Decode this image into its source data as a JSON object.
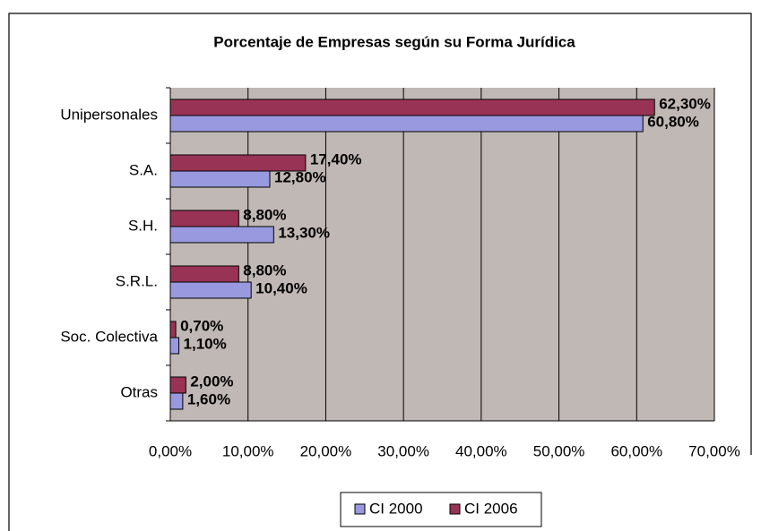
{
  "chart_data": {
    "type": "hbar",
    "title": "Porcentaje de Empresas según su Forma Jurídica",
    "categories": [
      "Unipersonales",
      "S.A.",
      "S.H.",
      "S.R.L.",
      "Soc. Colectiva",
      "Otras"
    ],
    "series": [
      {
        "name": "CI 2000",
        "color": "#9999e0",
        "values": [
          60.8,
          12.8,
          13.3,
          10.4,
          1.1,
          1.6
        ],
        "value_labels": [
          "60,80%",
          "12,80%",
          "13,30%",
          "10,40%",
          "1,10%",
          "1,60%"
        ]
      },
      {
        "name": "CI 2006",
        "color": "#993355",
        "values": [
          62.3,
          17.4,
          8.8,
          8.8,
          0.7,
          2.0
        ],
        "value_labels": [
          "62,30%",
          "17,40%",
          "8,80%",
          "8,80%",
          "0,70%",
          "2,00%"
        ]
      }
    ],
    "xlim": [
      0,
      70
    ],
    "xticks": [
      {
        "value": 0,
        "label": "0,00%"
      },
      {
        "value": 10,
        "label": "10,00%"
      },
      {
        "value": 20,
        "label": "20,00%"
      },
      {
        "value": 30,
        "label": "30,00%"
      },
      {
        "value": 40,
        "label": "40,00%"
      },
      {
        "value": 50,
        "label": "50,00%"
      },
      {
        "value": 60,
        "label": "60,00%"
      },
      {
        "value": 70,
        "label": "70,00%"
      }
    ],
    "grid": true,
    "legend": "bottom"
  }
}
